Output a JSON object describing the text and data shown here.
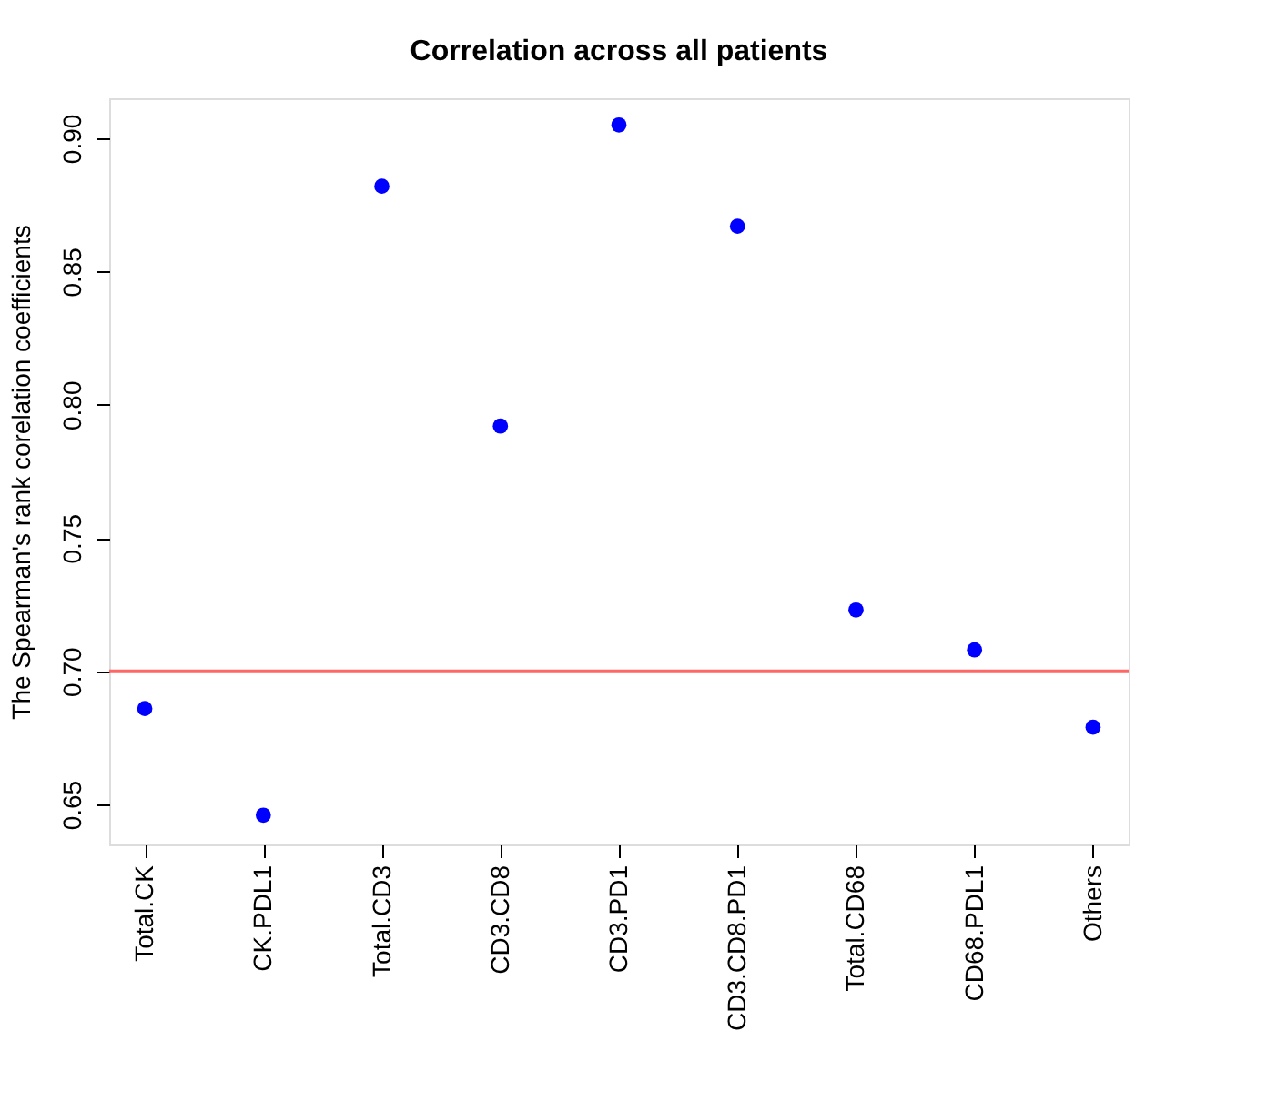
{
  "chart_data": {
    "type": "scatter",
    "title": "Correlation across all patients",
    "ylabel": "The Spearman's rank corelation coefficients",
    "categories": [
      "Total.CK",
      "CK.PDL1",
      "Total.CD3",
      "CD3.CD8",
      "CD3.PD1",
      "CD3.CD8.PD1",
      "Total.CD68",
      "CD68.PDL1",
      "Others"
    ],
    "series": [
      {
        "color": "#0000ff",
        "values": [
          0.686,
          0.646,
          0.882,
          0.792,
          0.905,
          0.867,
          0.723,
          0.708,
          0.679
        ]
      }
    ],
    "ylim": [
      0.635,
      0.915
    ],
    "yticks": [
      {
        "value": 0.65,
        "label": "0.65"
      },
      {
        "value": 0.7,
        "label": "0.70"
      },
      {
        "value": 0.75,
        "label": "0.75"
      },
      {
        "value": 0.8,
        "label": "0.80"
      },
      {
        "value": 0.85,
        "label": "0.85"
      },
      {
        "value": 0.9,
        "label": "0.90"
      }
    ],
    "grid": false,
    "marker": "circle",
    "ref_lines": [
      {
        "axis": "y",
        "value": 0.7,
        "color": "#ff6666"
      }
    ]
  }
}
